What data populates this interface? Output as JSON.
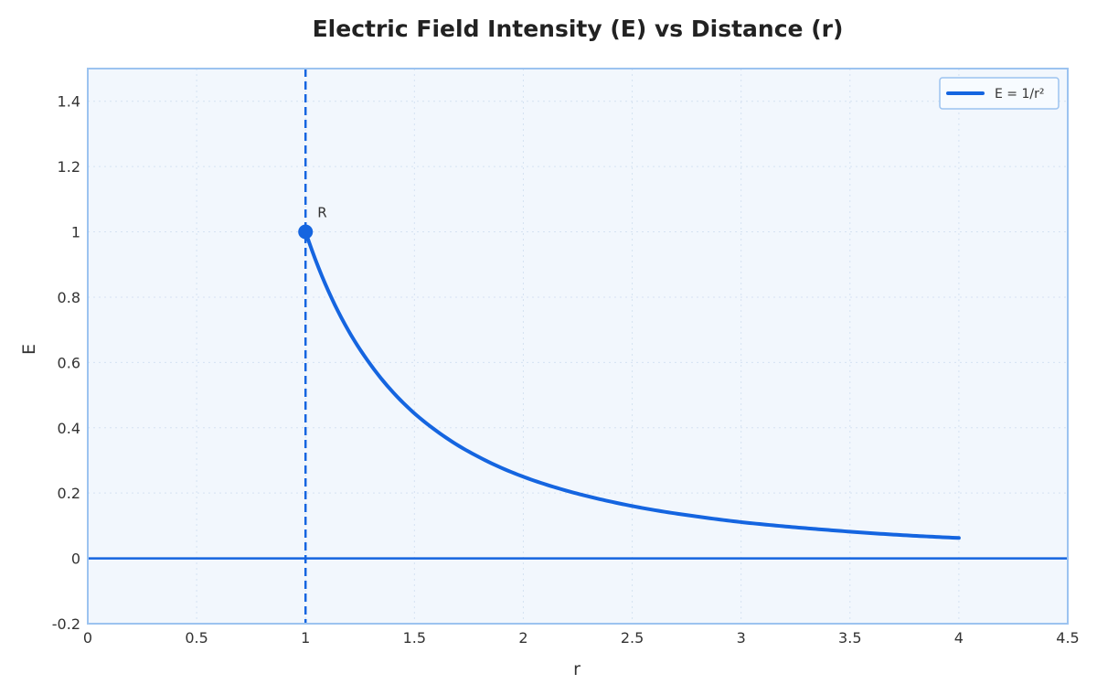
{
  "chart_data": {
    "type": "line",
    "title": "Electric Field Intensity (E) vs Distance (r)",
    "xlabel": "r",
    "ylabel": "E",
    "xlim": [
      0,
      4.5
    ],
    "ylim": [
      -0.2,
      1.5
    ],
    "x_ticks": [
      0,
      0.5,
      1,
      1.5,
      2,
      2.5,
      3,
      3.5,
      4,
      4.5
    ],
    "x_tick_labels": [
      "0",
      "0.5",
      "1",
      "1.5",
      "2",
      "2.5",
      "3",
      "3.5",
      "4",
      "4.5"
    ],
    "y_ticks": [
      -0.2,
      0,
      0.2,
      0.4,
      0.6,
      0.8,
      1,
      1.2,
      1.4
    ],
    "y_tick_labels": [
      "-0.2",
      "0",
      "0.2",
      "0.4",
      "0.6",
      "0.8",
      "1",
      "1.2",
      "1.4"
    ],
    "grid": true,
    "legend_position": "top-right",
    "series": [
      {
        "name": "E = 1/r²",
        "color": "#1565e0",
        "x": [
          1.0,
          1.1,
          1.2,
          1.3,
          1.4,
          1.5,
          1.6,
          1.7,
          1.8,
          1.9,
          2.0,
          2.2,
          2.4,
          2.6,
          2.8,
          3.0,
          3.2,
          3.4,
          3.6,
          3.8,
          4.0
        ],
        "y": [
          1.0,
          0.826,
          0.694,
          0.592,
          0.51,
          0.444,
          0.391,
          0.346,
          0.309,
          0.277,
          0.25,
          0.207,
          0.174,
          0.148,
          0.128,
          0.111,
          0.098,
          0.087,
          0.077,
          0.069,
          0.0625
        ]
      }
    ],
    "vertical_line": {
      "x": 1,
      "style": "dashed",
      "color": "#1565e0"
    },
    "horizontal_line": {
      "y": 0,
      "color": "#1565e0"
    },
    "marker": {
      "x": 1,
      "y": 1,
      "label": "R",
      "color": "#1565e0"
    }
  }
}
